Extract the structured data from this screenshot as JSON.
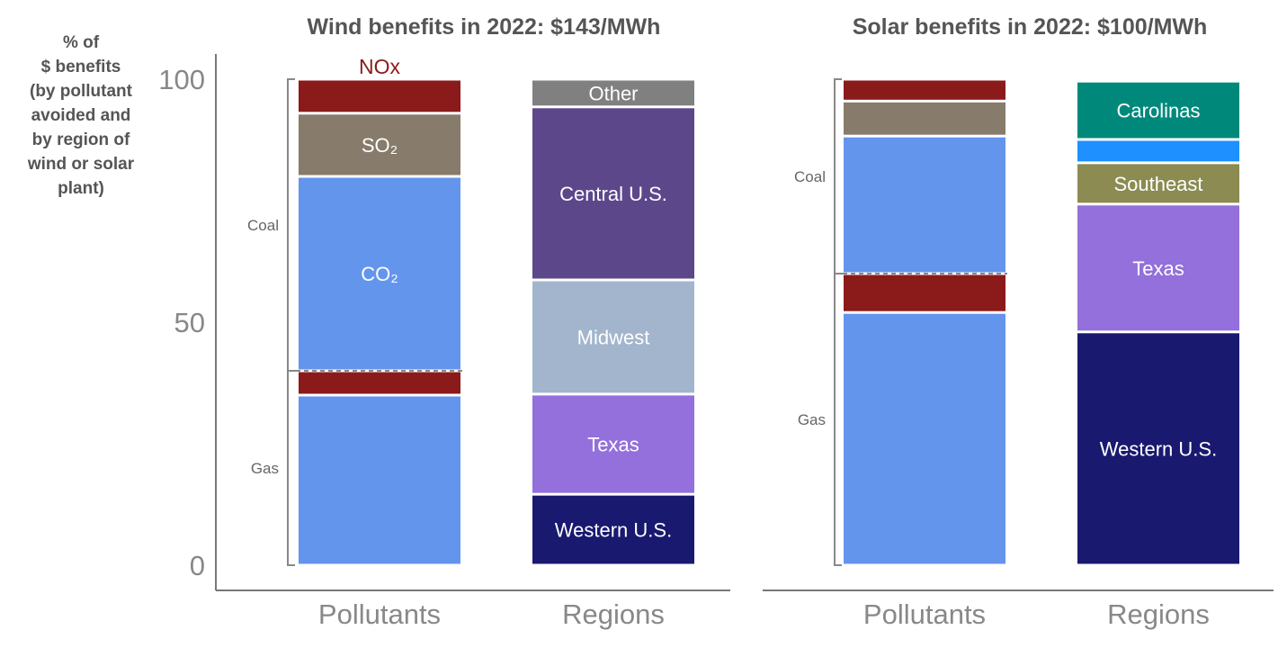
{
  "y_axis_label_lines": [
    "% of",
    "$ benefits",
    "",
    "(by pollutant",
    "avoided and",
    "by region of",
    "wind or solar",
    "plant)"
  ],
  "chart_data": [
    {
      "type": "bar",
      "stacked": true,
      "title": "Wind benefits in 2022: $143/MWh",
      "categories": [
        "Pollutants",
        "Regions"
      ],
      "ylim": [
        0,
        100
      ],
      "yticks": [
        0,
        50,
        100
      ],
      "grid": false,
      "groups": [
        {
          "name": "Gas",
          "from": 0,
          "to": 40
        },
        {
          "name": "Coal",
          "from": 40,
          "to": 100
        }
      ],
      "stacks": [
        {
          "category": "Pollutants",
          "segments": [
            {
              "label": "",
              "value": 35,
              "color": "#6495ED"
            },
            {
              "label": "",
              "value": 5,
              "color": "#8B1A1A"
            },
            {
              "label": "CO₂",
              "value": 40,
              "color": "#6495ED"
            },
            {
              "label": "SO₂",
              "value": 13,
              "color": "#877B6B"
            },
            {
              "label": "NOx",
              "value": 7,
              "color": "#8B1A1A",
              "label_outside": true
            }
          ]
        },
        {
          "category": "Regions",
          "segments": [
            {
              "label": "Western U.S.",
              "value": 14.6,
              "color": "#191970"
            },
            {
              "label": "Texas",
              "value": 20.6,
              "color": "#9370DB"
            },
            {
              "label": "Midwest",
              "value": 23.5,
              "color": "#A2B5CD"
            },
            {
              "label": "Central U.S.",
              "value": 35.6,
              "color": "#5D478B"
            },
            {
              "label": "Other",
              "value": 5.7,
              "color": "#808080"
            }
          ]
        }
      ]
    },
    {
      "type": "bar",
      "stacked": true,
      "title": "Solar benefits in 2022: $100/MWh",
      "categories": [
        "Pollutants",
        "Regions"
      ],
      "ylim": [
        0,
        100
      ],
      "grid": false,
      "groups": [
        {
          "name": "Gas",
          "from": 0,
          "to": 60
        },
        {
          "name": "Coal",
          "from": 60,
          "to": 100
        }
      ],
      "stacks": [
        {
          "category": "Pollutants",
          "segments": [
            {
              "label": "",
              "value": 52,
              "color": "#6495ED"
            },
            {
              "label": "",
              "value": 8,
              "color": "#8B1A1A"
            },
            {
              "label": "",
              "value": 28.3,
              "color": "#6495ED"
            },
            {
              "label": "",
              "value": 7.2,
              "color": "#877B6B"
            },
            {
              "label": "",
              "value": 4.5,
              "color": "#8B1A1A"
            }
          ]
        },
        {
          "category": "Regions",
          "segments": [
            {
              "label": "Western U.S.",
              "value": 48,
              "color": "#191970"
            },
            {
              "label": "Texas",
              "value": 26.3,
              "color": "#9370DB"
            },
            {
              "label": "Southeast",
              "value": 8.5,
              "color": "#8B8B52"
            },
            {
              "label": "",
              "value": 4.8,
              "color": "#1E90FF"
            },
            {
              "label": "Carolinas",
              "value": 12,
              "color": "#00897B"
            }
          ]
        }
      ]
    }
  ]
}
